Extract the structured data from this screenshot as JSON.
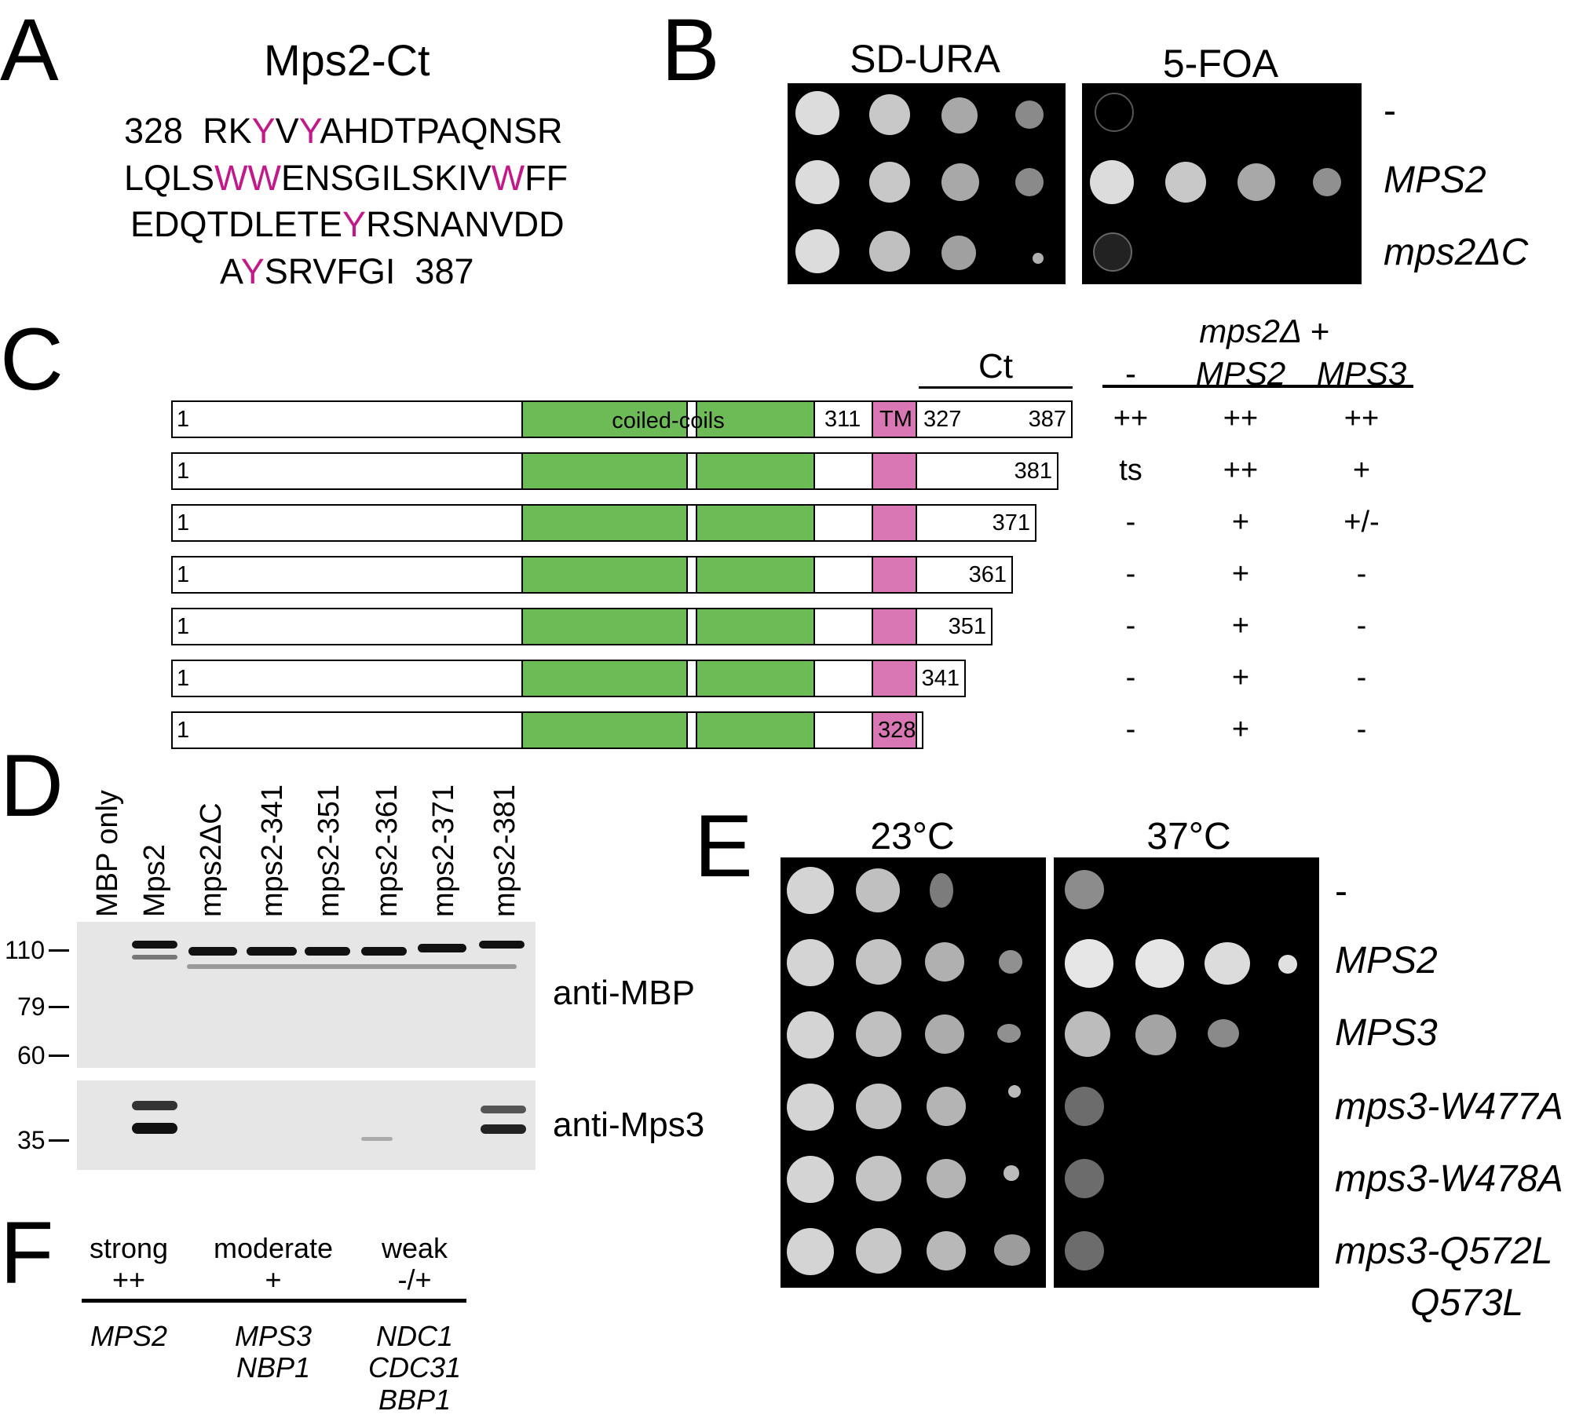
{
  "panelA": {
    "letter": "A",
    "title": "Mps2-Ct",
    "start": "328",
    "end": "387",
    "highlight_color": "#c2188a"
  },
  "panelB": {
    "letter": "B",
    "plates": [
      "SD-URA",
      "5-FOA"
    ],
    "rows": [
      "-",
      "MPS2",
      "mps2ΔC"
    ]
  },
  "panelC": {
    "letter": "C",
    "coiled_label": "coiled-coils",
    "tm_label": "TM",
    "ct_label": "Ct",
    "mark_311": "311",
    "mark_327": "327",
    "header_top": "mps2Δ +",
    "col_headers": [
      "-",
      "MPS2",
      "MPS3"
    ],
    "constructs": [
      {
        "start": "1",
        "end": "387",
        "scores": [
          "++",
          "++",
          "++"
        ]
      },
      {
        "start": "1",
        "end": "381",
        "scores": [
          "ts",
          "++",
          "+"
        ]
      },
      {
        "start": "1",
        "end": "371",
        "scores": [
          "-",
          "+",
          "+/-"
        ]
      },
      {
        "start": "1",
        "end": "361",
        "scores": [
          "-",
          "+",
          "-"
        ]
      },
      {
        "start": "1",
        "end": "351",
        "scores": [
          "-",
          "+",
          "-"
        ]
      },
      {
        "start": "1",
        "end": "341",
        "scores": [
          "-",
          "+",
          "-"
        ]
      },
      {
        "start": "1",
        "end": "328",
        "scores": [
          "-",
          "+",
          "-"
        ]
      }
    ]
  },
  "panelD": {
    "letter": "D",
    "lanes": [
      "MBP only",
      "Mps2",
      "mps2ΔC",
      "mps2-341",
      "mps2-351",
      "mps2-361",
      "mps2-371",
      "mps2-381"
    ],
    "markers_top": [
      "110",
      "79",
      "60"
    ],
    "markers_bottom": [
      "35"
    ],
    "blot_labels": [
      "anti-MBP",
      "anti-Mps3"
    ]
  },
  "panelE": {
    "letter": "E",
    "plates": [
      "23°C",
      "37°C"
    ],
    "rows": [
      "-",
      "MPS2",
      "MPS3",
      "mps3-W477A",
      "mps3-W478A",
      "mps3-Q572L",
      "Q573L"
    ]
  },
  "panelF": {
    "letter": "F",
    "categories": [
      {
        "label": "strong",
        "symbol": "++",
        "genes": [
          "MPS2"
        ]
      },
      {
        "label": "moderate",
        "symbol": "+",
        "genes": [
          "MPS3",
          "NBP1"
        ]
      },
      {
        "label": "weak",
        "symbol": "-/+",
        "genes": [
          "NDC1",
          "CDC31",
          "BBP1"
        ]
      }
    ]
  }
}
